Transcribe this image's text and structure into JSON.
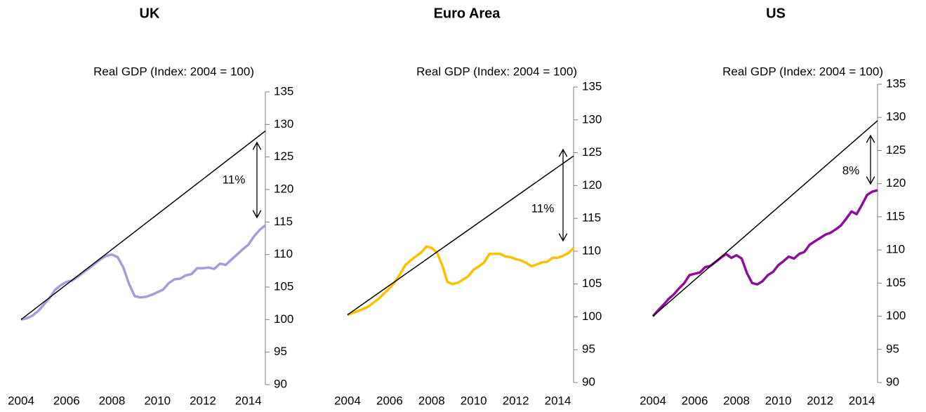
{
  "chart_data": [
    {
      "type": "line",
      "title": "UK",
      "subtitle": "Real GDP (Index: 2004 = 100)",
      "annotation": "11%",
      "xlim": [
        2004,
        2014.75
      ],
      "xticks": [
        2004,
        2006,
        2008,
        2010,
        2012,
        2014
      ],
      "ylim": [
        90,
        135
      ],
      "yticks": [
        90,
        95,
        100,
        105,
        110,
        115,
        120,
        125,
        130,
        135
      ],
      "series": [
        {
          "color": "#a99bdc",
          "x": [
            2004,
            2004.25,
            2004.5,
            2004.75,
            2005,
            2005.25,
            2005.5,
            2005.75,
            2006,
            2006.25,
            2006.5,
            2006.75,
            2007,
            2007.25,
            2007.5,
            2007.75,
            2008,
            2008.25,
            2008.5,
            2008.75,
            2009,
            2009.25,
            2009.5,
            2009.75,
            2010,
            2010.25,
            2010.5,
            2010.75,
            2011,
            2011.25,
            2011.5,
            2011.75,
            2012,
            2012.25,
            2012.5,
            2012.75,
            2013,
            2013.25,
            2013.5,
            2013.75,
            2014,
            2014.25,
            2014.5,
            2014.75
          ],
          "values": [
            100,
            100.2,
            100.6,
            101.3,
            102.3,
            103.3,
            104.6,
            105.3,
            105.8,
            106.0,
            106.6,
            107.3,
            107.9,
            108.6,
            109.3,
            109.8,
            110.0,
            109.6,
            108.0,
            105.5,
            103.6,
            103.4,
            103.5,
            103.8,
            104.2,
            104.6,
            105.6,
            106.2,
            106.3,
            106.8,
            107.0,
            107.9,
            107.9,
            108.0,
            107.8,
            108.6,
            108.4,
            109.2,
            110.0,
            110.8,
            111.5,
            112.8,
            113.8,
            114.5
          ]
        },
        {
          "color": "#000000",
          "x": [
            2004,
            2014.75
          ],
          "values": [
            100,
            129
          ]
        }
      ]
    },
    {
      "type": "line",
      "title": "Euro Area",
      "subtitle": "Real GDP (Index: 2004 = 100)",
      "annotation": "11%",
      "xlim": [
        2004,
        2014.75
      ],
      "xticks": [
        2004,
        2006,
        2008,
        2010,
        2012,
        2014
      ],
      "ylim": [
        90,
        135
      ],
      "yticks": [
        90,
        95,
        100,
        105,
        110,
        115,
        120,
        125,
        130,
        135
      ],
      "series": [
        {
          "color": "#ffc000",
          "x": [
            2004,
            2004.25,
            2004.5,
            2004.75,
            2005,
            2005.25,
            2005.5,
            2005.75,
            2006,
            2006.25,
            2006.5,
            2006.75,
            2007,
            2007.25,
            2007.5,
            2007.75,
            2008,
            2008.25,
            2008.5,
            2008.75,
            2009,
            2009.25,
            2009.5,
            2009.75,
            2010,
            2010.25,
            2010.5,
            2010.75,
            2011,
            2011.25,
            2011.5,
            2011.75,
            2012,
            2012.25,
            2012.5,
            2012.75,
            2013,
            2013.25,
            2013.5,
            2013.75,
            2014,
            2014.25,
            2014.5,
            2014.75
          ],
          "values": [
            100.3,
            100.6,
            100.9,
            101.2,
            101.6,
            102.2,
            102.8,
            103.6,
            104.4,
            105.3,
            106.5,
            107.9,
            108.6,
            109.2,
            109.8,
            110.7,
            110.5,
            109.8,
            107.9,
            105.3,
            105.0,
            105.2,
            105.7,
            106.2,
            107.2,
            107.7,
            108.3,
            109.6,
            109.6,
            109.6,
            109.2,
            109.1,
            108.8,
            108.6,
            108.2,
            107.7,
            108.0,
            108.3,
            108.4,
            109.0,
            109.0,
            109.3,
            109.7,
            110.5
          ]
        },
        {
          "color": "#000000",
          "x": [
            2004,
            2014.75
          ],
          "values": [
            100.3,
            124.5
          ]
        }
      ]
    },
    {
      "type": "line",
      "title": "US",
      "subtitle": "Real GDP (Index: 2004 = 100)",
      "annotation": "8%",
      "xlim": [
        2004,
        2014.75
      ],
      "xticks": [
        2004,
        2006,
        2008,
        2010,
        2012,
        2014
      ],
      "ylim": [
        90,
        135
      ],
      "yticks": [
        90,
        95,
        100,
        105,
        110,
        115,
        120,
        125,
        130,
        135
      ],
      "series": [
        {
          "color": "#8e0e9c",
          "x": [
            2004,
            2004.25,
            2004.5,
            2004.75,
            2005,
            2005.25,
            2005.5,
            2005.75,
            2006,
            2006.25,
            2006.5,
            2006.75,
            2007,
            2007.25,
            2007.5,
            2007.75,
            2008,
            2008.25,
            2008.5,
            2008.75,
            2009,
            2009.25,
            2009.5,
            2009.75,
            2010,
            2010.25,
            2010.5,
            2010.75,
            2011,
            2011.25,
            2011.5,
            2011.75,
            2012,
            2012.25,
            2012.5,
            2012.75,
            2013,
            2013.25,
            2013.5,
            2013.75,
            2014,
            2014.25,
            2014.5,
            2014.75
          ],
          "values": [
            100.0,
            100.9,
            101.7,
            102.6,
            103.3,
            104.2,
            105.0,
            106.2,
            106.4,
            106.6,
            107.4,
            107.6,
            108.2,
            108.8,
            109.4,
            108.8,
            109.2,
            108.7,
            106.5,
            105.0,
            104.8,
            105.3,
            106.2,
            106.7,
            107.7,
            108.3,
            109.0,
            108.7,
            109.4,
            109.7,
            110.8,
            111.3,
            111.8,
            112.3,
            112.6,
            113.1,
            113.7,
            114.7,
            115.8,
            115.4,
            116.8,
            118.3,
            118.8,
            119.0
          ]
        },
        {
          "color": "#000000",
          "x": [
            2004,
            2014.75
          ],
          "values": [
            100,
            129.5
          ]
        }
      ]
    }
  ]
}
